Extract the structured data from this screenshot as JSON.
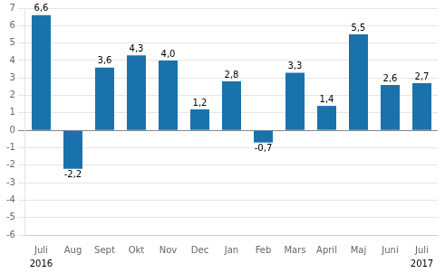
{
  "chart_data": {
    "type": "bar",
    "categories": [
      "Juli",
      "Aug",
      "Sept",
      "Okt",
      "Nov",
      "Dec",
      "Jan",
      "Feb",
      "Mars",
      "April",
      "Maj",
      "Juni",
      "Juli"
    ],
    "values": [
      6.6,
      -2.2,
      3.6,
      4.3,
      4.0,
      1.2,
      2.8,
      -0.7,
      3.3,
      1.4,
      5.5,
      2.6,
      2.7
    ],
    "value_labels": [
      "6,6",
      "-2,2",
      "3,6",
      "4,3",
      "4,0",
      "1,2",
      "2,8",
      "-0,7",
      "3,3",
      "1,4",
      "5,5",
      "2,6",
      "2,7"
    ],
    "data_labels": true,
    "color": "#1a72ad",
    "ylim": [
      -6,
      7
    ],
    "yticks": [
      -6,
      -5,
      -4,
      -3,
      -2,
      -1,
      0,
      1,
      2,
      3,
      4,
      5,
      6,
      7
    ],
    "grid": true,
    "annotations": [
      {
        "text": "2016",
        "x": 0
      },
      {
        "text": "2017",
        "x": 12
      }
    ]
  }
}
